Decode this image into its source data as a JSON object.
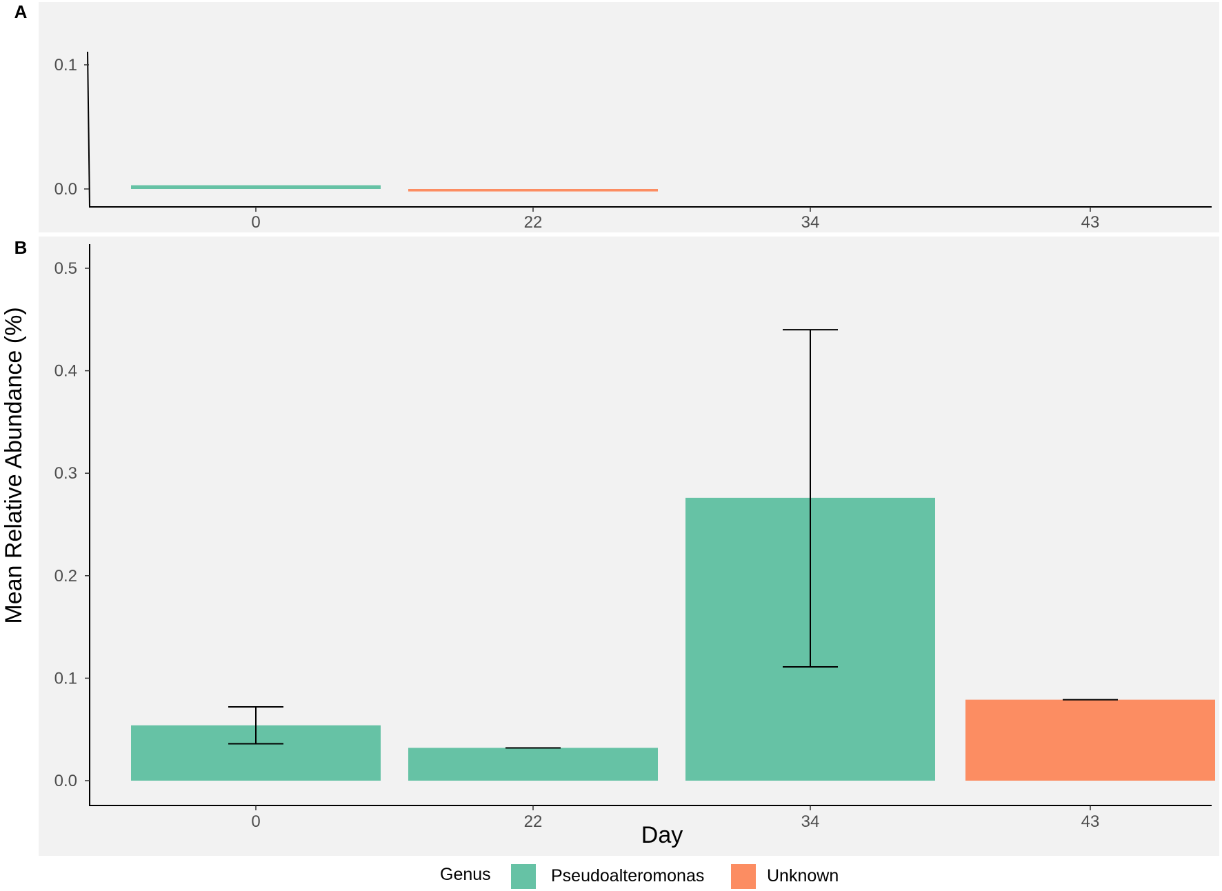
{
  "chart_data": [
    {
      "panel": "A",
      "type": "bar",
      "categories": [
        "0",
        "22",
        "34",
        "43"
      ],
      "series": [
        {
          "name": "Pseudoalteromonas",
          "values": [
            0.003,
            null,
            null,
            null
          ]
        },
        {
          "name": "Unknown",
          "values": [
            null,
            -0.002,
            null,
            null
          ]
        }
      ],
      "xlabel": "",
      "ylabel": "",
      "ylim": [
        -0.015,
        0.11
      ],
      "yticks": [
        "0.0",
        "0.1"
      ],
      "grid": false
    },
    {
      "panel": "B",
      "type": "bar",
      "categories": [
        "0",
        "22",
        "34",
        "43"
      ],
      "bars": [
        {
          "category": "0",
          "genus": "Pseudoalteromonas",
          "value": 0.054,
          "err_low": 0.036,
          "err_high": 0.072
        },
        {
          "category": "22",
          "genus": "Pseudoalteromonas",
          "value": 0.032,
          "err_low": 0.032,
          "err_high": 0.032
        },
        {
          "category": "34",
          "genus": "Pseudoalteromonas",
          "value": 0.276,
          "err_low": 0.111,
          "err_high": 0.44
        },
        {
          "category": "43",
          "genus": "Unknown",
          "value": 0.079,
          "err_low": 0.079,
          "err_high": 0.079
        }
      ],
      "xlabel": "Day",
      "ylabel": "Mean Relative Abundance (%)",
      "ylim": [
        -0.025,
        0.52
      ],
      "yticks": [
        "0.0",
        "0.1",
        "0.2",
        "0.3",
        "0.4",
        "0.5"
      ],
      "grid": false
    }
  ],
  "legend": {
    "title": "Genus",
    "placement": "bottom",
    "items": [
      {
        "label": "Pseudoalteromonas",
        "color": "#66c2a5"
      },
      {
        "label": "Unknown",
        "color": "#fc8d62"
      }
    ]
  },
  "colors": {
    "Pseudoalteromonas": "#66c2a5",
    "Unknown": "#fc8d62",
    "panel_background": "#f2f2f2"
  }
}
